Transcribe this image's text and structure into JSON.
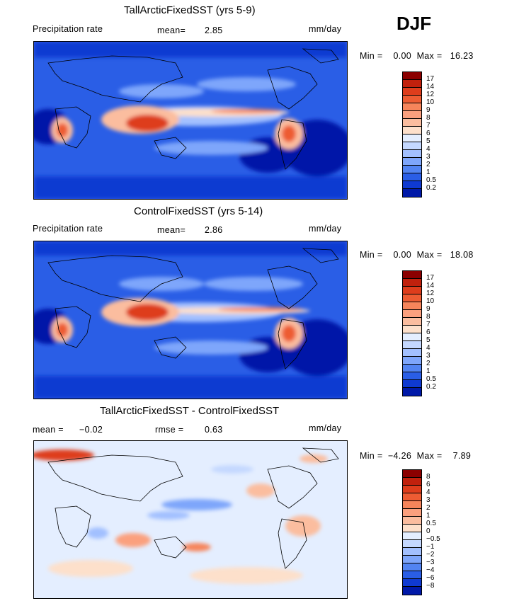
{
  "season": "DJF",
  "panels": [
    {
      "title": "TallArcticFixedSST (yrs 5-9)",
      "left_label": "Precipitation rate",
      "stat1": "mean=",
      "stat1_value": "2.85",
      "stat2": "",
      "stat2_value": "",
      "units": "mm/day",
      "minmax": "Min =    0.00  Max =   16.23",
      "colorbar_labels": [
        "17",
        "14",
        "12",
        "10",
        "9",
        "8",
        "7",
        "6",
        "5",
        "4",
        "3",
        "2",
        "1",
        "0.5",
        "0.2"
      ],
      "colorbar_colors": [
        "#8b0000",
        "#c1210d",
        "#de3d1c",
        "#ed5c33",
        "#f6855b",
        "#fba07e",
        "#fbbd9f",
        "#fde0cb",
        "#e4eeff",
        "#c4d8ff",
        "#a2c0ff",
        "#7ea6fb",
        "#5284f2",
        "#2a5ee6",
        "#0f3ad1",
        "#0019a8"
      ]
    },
    {
      "title": "ControlFixedSST (yrs 5-14)",
      "left_label": "Precipitation rate",
      "stat1": "mean=",
      "stat1_value": "2.86",
      "stat2": "",
      "stat2_value": "",
      "units": "mm/day",
      "minmax": "Min =    0.00  Max =   18.08",
      "colorbar_labels": [
        "17",
        "14",
        "12",
        "10",
        "9",
        "8",
        "7",
        "6",
        "5",
        "4",
        "3",
        "2",
        "1",
        "0.5",
        "0.2"
      ],
      "colorbar_colors": [
        "#8b0000",
        "#c1210d",
        "#de3d1c",
        "#ed5c33",
        "#f6855b",
        "#fba07e",
        "#fbbd9f",
        "#fde0cb",
        "#e4eeff",
        "#c4d8ff",
        "#a2c0ff",
        "#7ea6fb",
        "#5284f2",
        "#2a5ee6",
        "#0f3ad1",
        "#0019a8"
      ]
    },
    {
      "title": "TallArcticFixedSST - ControlFixedSST",
      "left_label": "",
      "stat1": "mean =",
      "stat1_value": "−0.02",
      "stat2": "rmse =",
      "stat2_value": "0.63",
      "units": "mm/day",
      "minmax": "Min =  −4.26  Max =    7.89",
      "colorbar_labels": [
        "8",
        "6",
        "4",
        "3",
        "2",
        "1",
        "0.5",
        "0",
        "−0.5",
        "−1",
        "−2",
        "−3",
        "−4",
        "−6",
        "−8"
      ],
      "colorbar_colors": [
        "#8b0000",
        "#c1210d",
        "#de3d1c",
        "#ed5c33",
        "#f6855b",
        "#fba07e",
        "#fbbd9f",
        "#fde0cb",
        "#e4eeff",
        "#c4d8ff",
        "#a2c0ff",
        "#7ea6fb",
        "#5284f2",
        "#2a5ee6",
        "#0f3ad1",
        "#0019a8"
      ]
    }
  ]
}
